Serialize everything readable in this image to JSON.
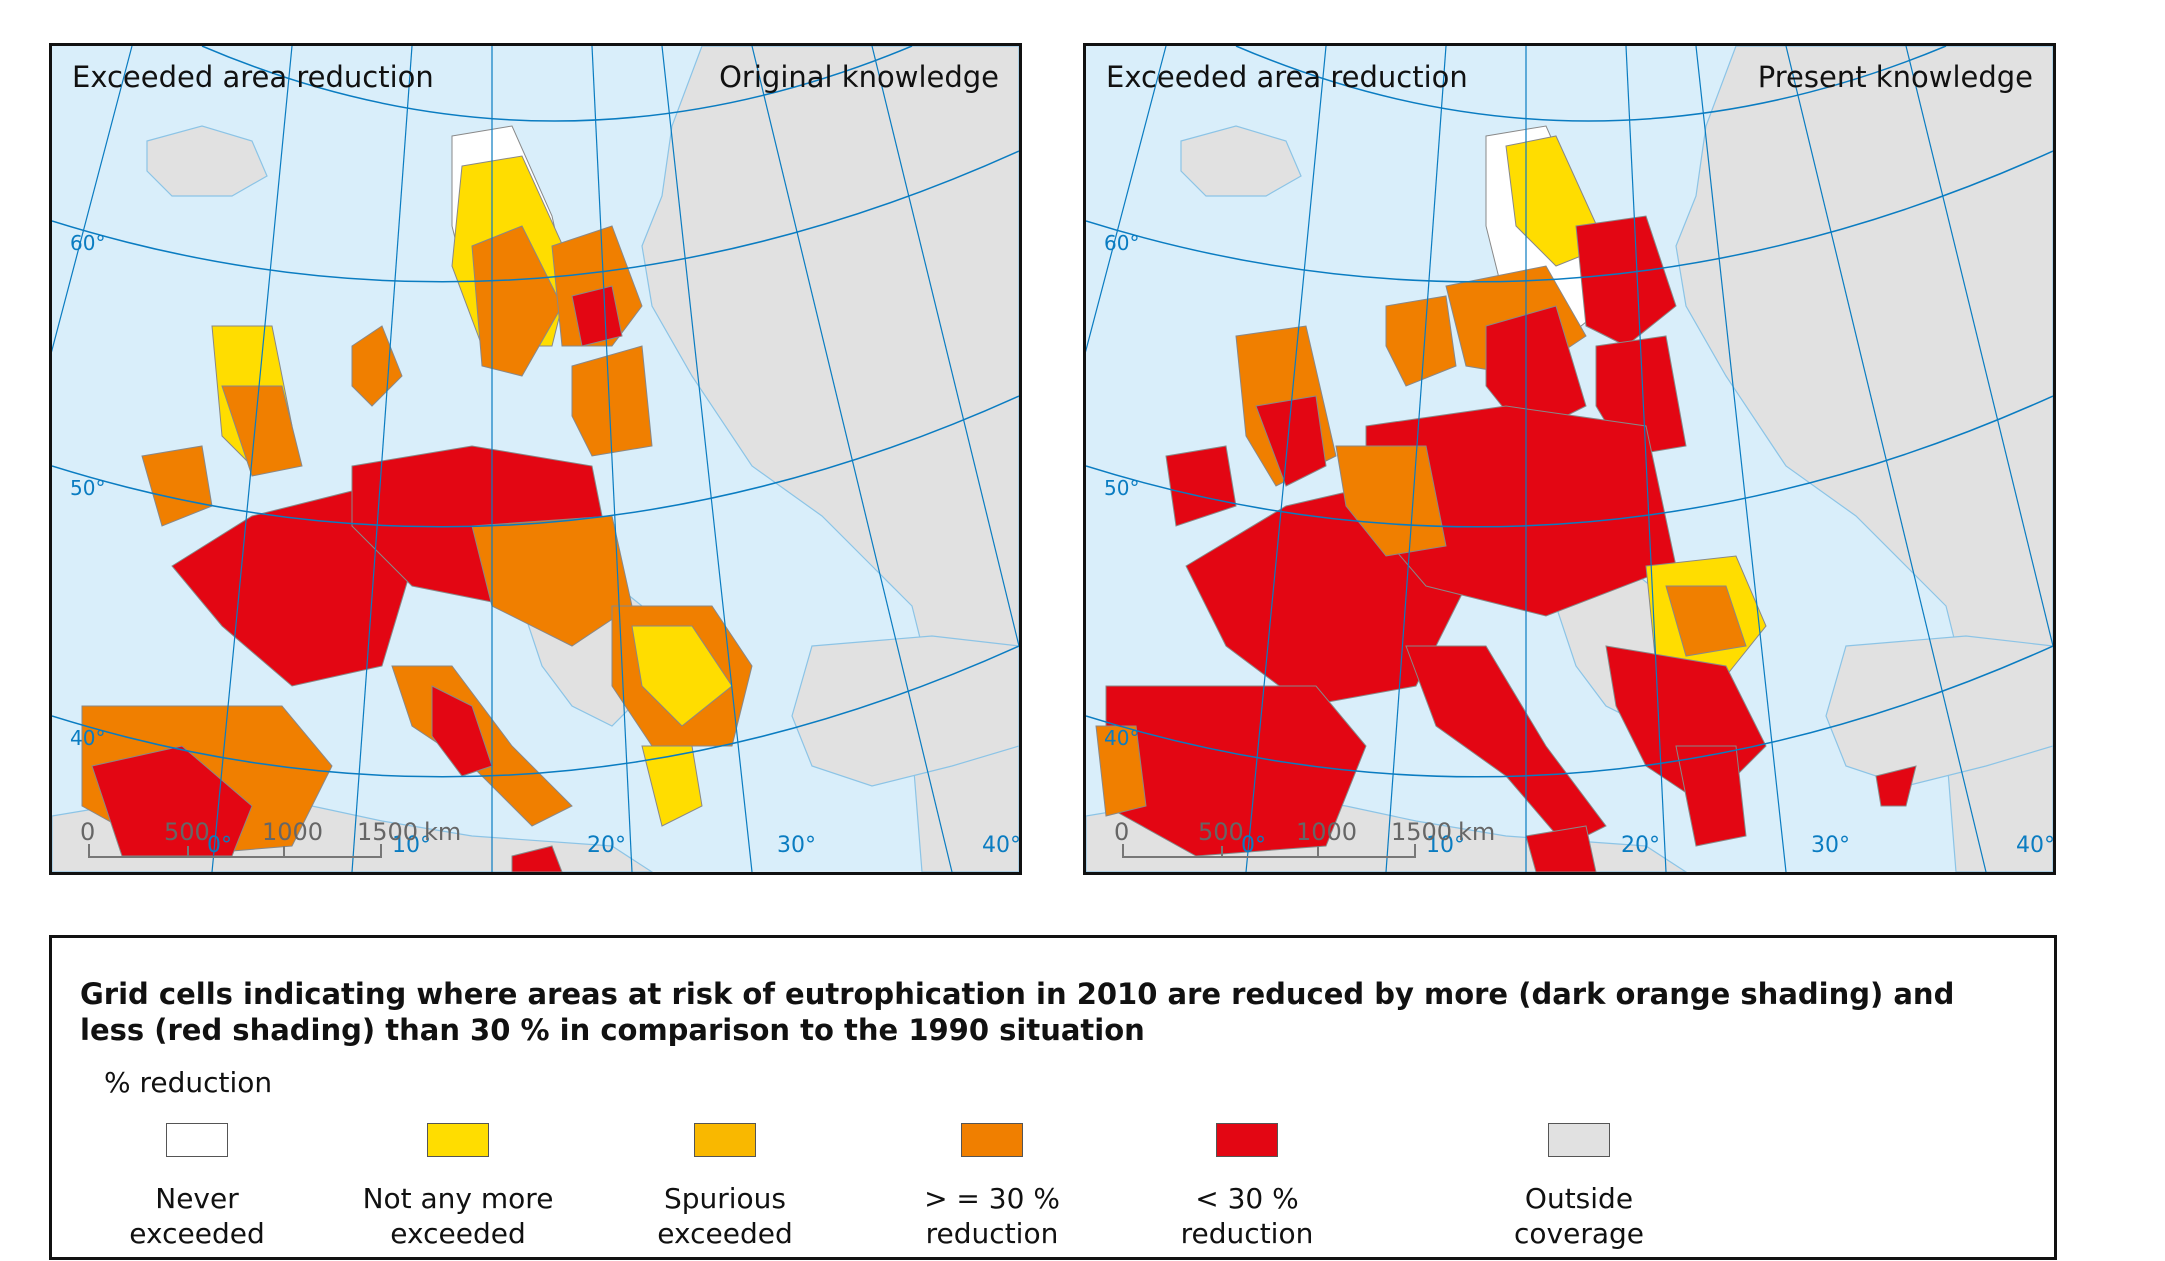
{
  "maps": [
    {
      "title_left": "Exceeded area reduction",
      "title_right": "Original knowledge",
      "variant": "original"
    },
    {
      "title_left": "Exceeded area reduction",
      "title_right": "Present knowledge",
      "variant": "present"
    }
  ],
  "graticule": {
    "latitudes": [
      "60°",
      "50°",
      "40°"
    ],
    "longitudes": [
      "0°",
      "10°",
      "20°",
      "30°",
      "40°"
    ]
  },
  "scale_bar": {
    "ticks": [
      "0",
      "500",
      "1000",
      "1500"
    ],
    "unit": "km"
  },
  "colors": {
    "sea": "#d9eefa",
    "land_outside": "#e1e1e1",
    "graticule": "#0a7cc1",
    "border": "#888888",
    "coast": "#8cc4e6"
  },
  "legend": {
    "heading": "Grid cells indicating where areas at risk of eutrophication in 2010 are reduced by more (dark orange shading) and less (red shading) than 30 % in comparison to the 1990 situation",
    "subtitle": "% reduction",
    "items": [
      {
        "line1": "Never",
        "line2": "exceeded",
        "color": "#ffffff"
      },
      {
        "line1": "Not any more",
        "line2": "exceeded",
        "color": "#ffdd00"
      },
      {
        "line1": "Spurious",
        "line2": "exceeded",
        "color": "#f9b800"
      },
      {
        "line1": "> = 30 %",
        "line2": "reduction",
        "color": "#f07f00"
      },
      {
        "line1": "< 30 %",
        "line2": "reduction",
        "color": "#e30613"
      },
      {
        "line1": "Outside",
        "line2": "coverage",
        "color": "#e1e1e1"
      }
    ]
  }
}
